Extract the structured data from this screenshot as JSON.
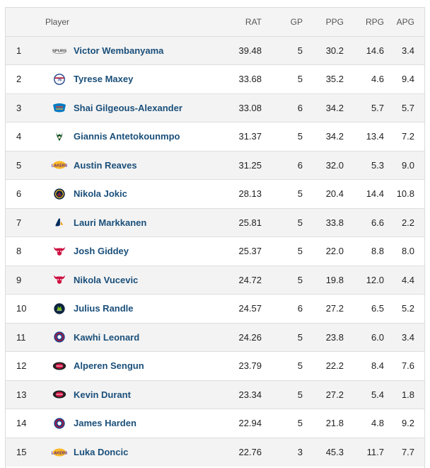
{
  "columns": {
    "player": "Player",
    "rat": "RAT",
    "gp": "GP",
    "ppg": "PPG",
    "rpg": "RPG",
    "apg": "APG"
  },
  "rows": [
    {
      "rank": "1",
      "team_icon": "spurs-logo-icon",
      "player": "Victor Wembanyama",
      "rat": "39.48",
      "gp": "5",
      "ppg": "30.2",
      "rpg": "14.6",
      "apg": "3.4"
    },
    {
      "rank": "2",
      "team_icon": "76ers-logo-icon",
      "player": "Tyrese Maxey",
      "rat": "33.68",
      "gp": "5",
      "ppg": "35.2",
      "rpg": "4.6",
      "apg": "9.4"
    },
    {
      "rank": "3",
      "team_icon": "thunder-logo-icon",
      "player": "Shai Gilgeous-Alexander",
      "rat": "33.08",
      "gp": "6",
      "ppg": "34.2",
      "rpg": "5.7",
      "apg": "5.7"
    },
    {
      "rank": "4",
      "team_icon": "bucks-logo-icon",
      "player": "Giannis Antetokounmpo",
      "rat": "31.37",
      "gp": "5",
      "ppg": "34.2",
      "rpg": "13.4",
      "apg": "7.2"
    },
    {
      "rank": "5",
      "team_icon": "lakers-logo-icon",
      "player": "Austin Reaves",
      "rat": "31.25",
      "gp": "6",
      "ppg": "32.0",
      "rpg": "5.3",
      "apg": "9.0"
    },
    {
      "rank": "6",
      "team_icon": "nuggets-logo-icon",
      "player": "Nikola Jokic",
      "rat": "28.13",
      "gp": "5",
      "ppg": "20.4",
      "rpg": "14.4",
      "apg": "10.8"
    },
    {
      "rank": "7",
      "team_icon": "jazz-logo-icon",
      "player": "Lauri Markkanen",
      "rat": "25.81",
      "gp": "5",
      "ppg": "33.8",
      "rpg": "6.6",
      "apg": "2.2"
    },
    {
      "rank": "8",
      "team_icon": "bulls-logo-icon",
      "player": "Josh Giddey",
      "rat": "25.37",
      "gp": "5",
      "ppg": "22.0",
      "rpg": "8.8",
      "apg": "8.0"
    },
    {
      "rank": "9",
      "team_icon": "bulls-logo-icon",
      "player": "Nikola Vucevic",
      "rat": "24.72",
      "gp": "5",
      "ppg": "19.8",
      "rpg": "12.0",
      "apg": "4.4"
    },
    {
      "rank": "10",
      "team_icon": "timberwolves-logo-icon",
      "player": "Julius Randle",
      "rat": "24.57",
      "gp": "6",
      "ppg": "27.2",
      "rpg": "6.5",
      "apg": "5.2"
    },
    {
      "rank": "11",
      "team_icon": "clippers-logo-icon",
      "player": "Kawhi Leonard",
      "rat": "24.26",
      "gp": "5",
      "ppg": "23.8",
      "rpg": "6.0",
      "apg": "3.4"
    },
    {
      "rank": "12",
      "team_icon": "rockets-logo-icon",
      "player": "Alperen Sengun",
      "rat": "23.79",
      "gp": "5",
      "ppg": "22.2",
      "rpg": "8.4",
      "apg": "7.6"
    },
    {
      "rank": "13",
      "team_icon": "rockets-logo-icon",
      "player": "Kevin Durant",
      "rat": "23.34",
      "gp": "5",
      "ppg": "27.2",
      "rpg": "5.4",
      "apg": "1.8"
    },
    {
      "rank": "14",
      "team_icon": "clippers-logo-icon",
      "player": "James Harden",
      "rat": "22.94",
      "gp": "5",
      "ppg": "21.8",
      "rpg": "4.8",
      "apg": "9.2"
    },
    {
      "rank": "15",
      "team_icon": "lakers-logo-icon",
      "player": "Luka Doncic",
      "rat": "22.76",
      "gp": "3",
      "ppg": "45.3",
      "rpg": "11.7",
      "apg": "7.7"
    }
  ],
  "colors": {
    "link": "#1a4f7a",
    "row_alt": "#f3f3f3",
    "header_bg": "#f4f4f4",
    "border": "#dedede"
  }
}
